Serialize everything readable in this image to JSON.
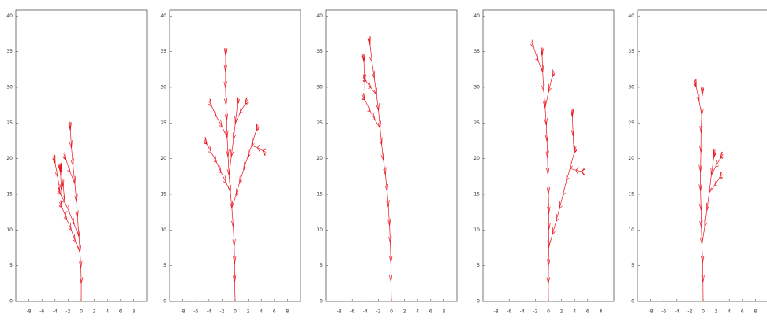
{
  "chart_data": [
    {
      "type": "line",
      "xlim": [
        -10,
        10
      ],
      "ylim": [
        0,
        40.8
      ],
      "xticks": [
        -8,
        -6,
        -4,
        -2,
        0,
        2,
        4,
        6,
        8
      ],
      "yticks": [
        0,
        5,
        10,
        15,
        20,
        25,
        30,
        35,
        40
      ],
      "color": "#e8141e"
    },
    {
      "type": "line",
      "xlim": [
        -10,
        10
      ],
      "ylim": [
        0,
        40.8
      ],
      "xticks": [
        -8,
        -6,
        -4,
        -2,
        0,
        2,
        4,
        6,
        8
      ],
      "yticks": [
        0,
        5,
        10,
        15,
        20,
        25,
        30,
        35,
        40
      ],
      "color": "#e8141e"
    },
    {
      "type": "line",
      "xlim": [
        -10,
        10
      ],
      "ylim": [
        0,
        40.8
      ],
      "xticks": [
        -8,
        -6,
        -4,
        -2,
        0,
        2,
        4,
        6,
        8
      ],
      "yticks": [
        0,
        5,
        10,
        15,
        20,
        25,
        30,
        35,
        40
      ],
      "color": "#e8141e"
    },
    {
      "type": "line",
      "xlim": [
        -10,
        10
      ],
      "ylim": [
        0,
        40.8
      ],
      "xticks": [
        -8,
        -6,
        -4,
        -2,
        0,
        2,
        4,
        6,
        8
      ],
      "yticks": [
        0,
        5,
        10,
        15,
        20,
        25,
        30,
        35,
        40
      ],
      "color": "#e8141e"
    },
    {
      "type": "line",
      "xlim": [
        -10,
        10
      ],
      "ylim": [
        0,
        40.8
      ],
      "xticks": [
        -8,
        -6,
        -4,
        -2,
        0,
        2,
        4,
        6,
        8
      ],
      "yticks": [
        0,
        5,
        10,
        15,
        20,
        25,
        30,
        35,
        40
      ],
      "color": "#e8141e"
    }
  ]
}
